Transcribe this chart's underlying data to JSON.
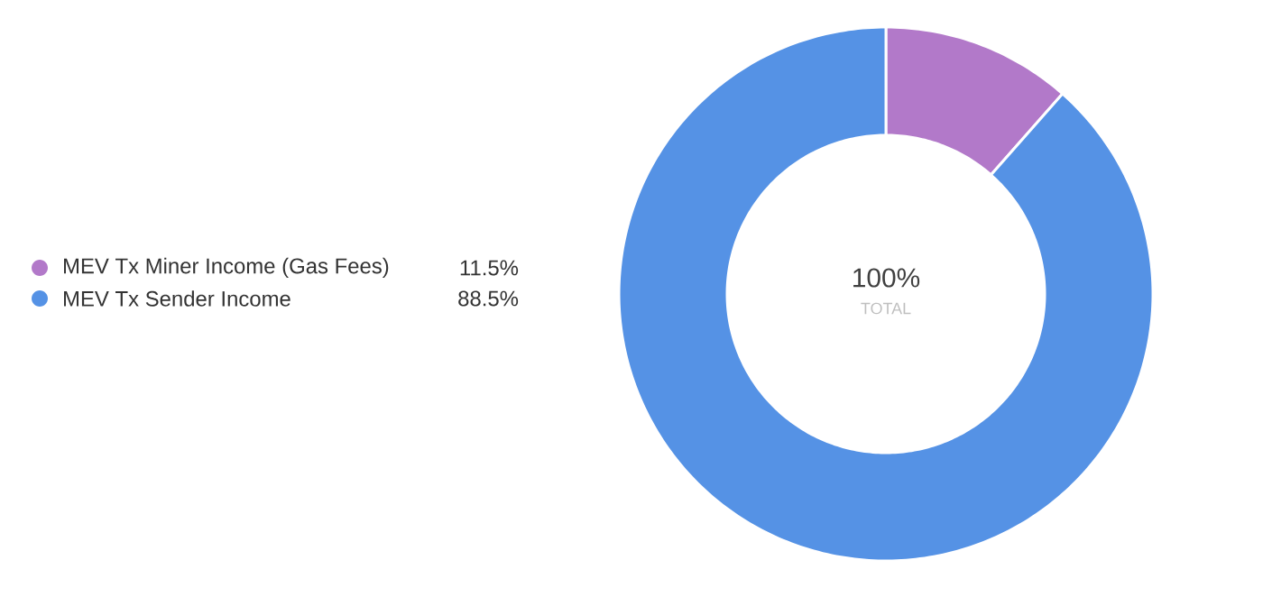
{
  "chart_data": {
    "type": "donut",
    "categories": [
      "MEV Tx Miner Income (Gas Fees)",
      "MEV Tx Sender Income"
    ],
    "values": [
      11.5,
      88.5
    ],
    "colors": [
      "#b279c9",
      "#5592e5"
    ],
    "value_labels": [
      "11.5%",
      "88.5%"
    ],
    "legend": "left",
    "annotations": [
      "100%",
      "TOTAL"
    ]
  }
}
